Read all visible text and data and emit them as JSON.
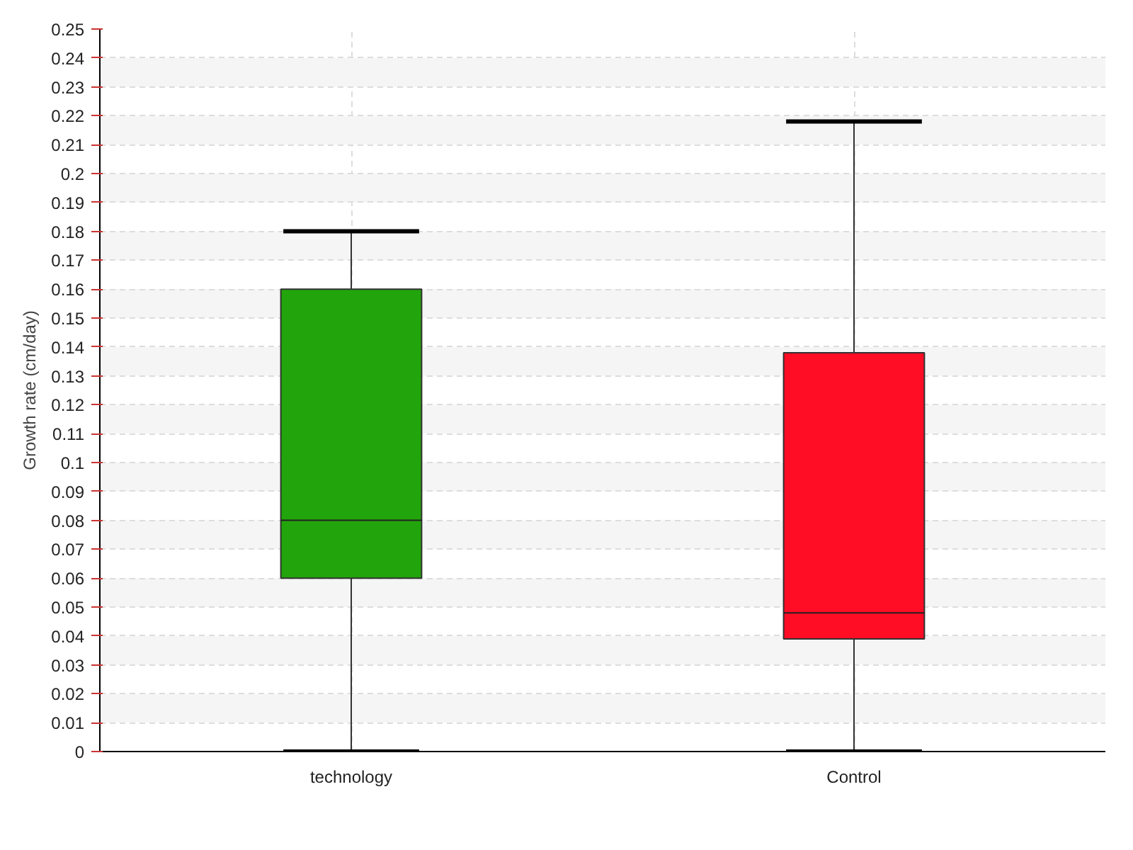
{
  "chart_data": {
    "type": "box",
    "ylabel": "Growth rate (cm/day)",
    "categories": [
      "technology",
      "Control"
    ],
    "series": [
      {
        "color": "#22a50c",
        "boxes": [
          {
            "low": 0,
            "q1": 0.06,
            "median": 0.08,
            "q3": 0.16,
            "high": 0.18
          },
          null
        ]
      },
      {
        "color": "#ff0c25",
        "boxes": [
          null,
          {
            "low": 0,
            "q1": 0.039,
            "median": 0.048,
            "q3": 0.138,
            "high": 0.218
          }
        ]
      }
    ],
    "ylim": [
      0,
      0.25
    ],
    "yticks": [
      0,
      0.01,
      0.02,
      0.03,
      0.04,
      0.05,
      0.06,
      0.07,
      0.08,
      0.09,
      0.1,
      0.11,
      0.12,
      0.13,
      0.14,
      0.15,
      0.16,
      0.17,
      0.18,
      0.19,
      0.2,
      0.21,
      0.22,
      0.23,
      0.24,
      0.25
    ],
    "grid": true
  }
}
